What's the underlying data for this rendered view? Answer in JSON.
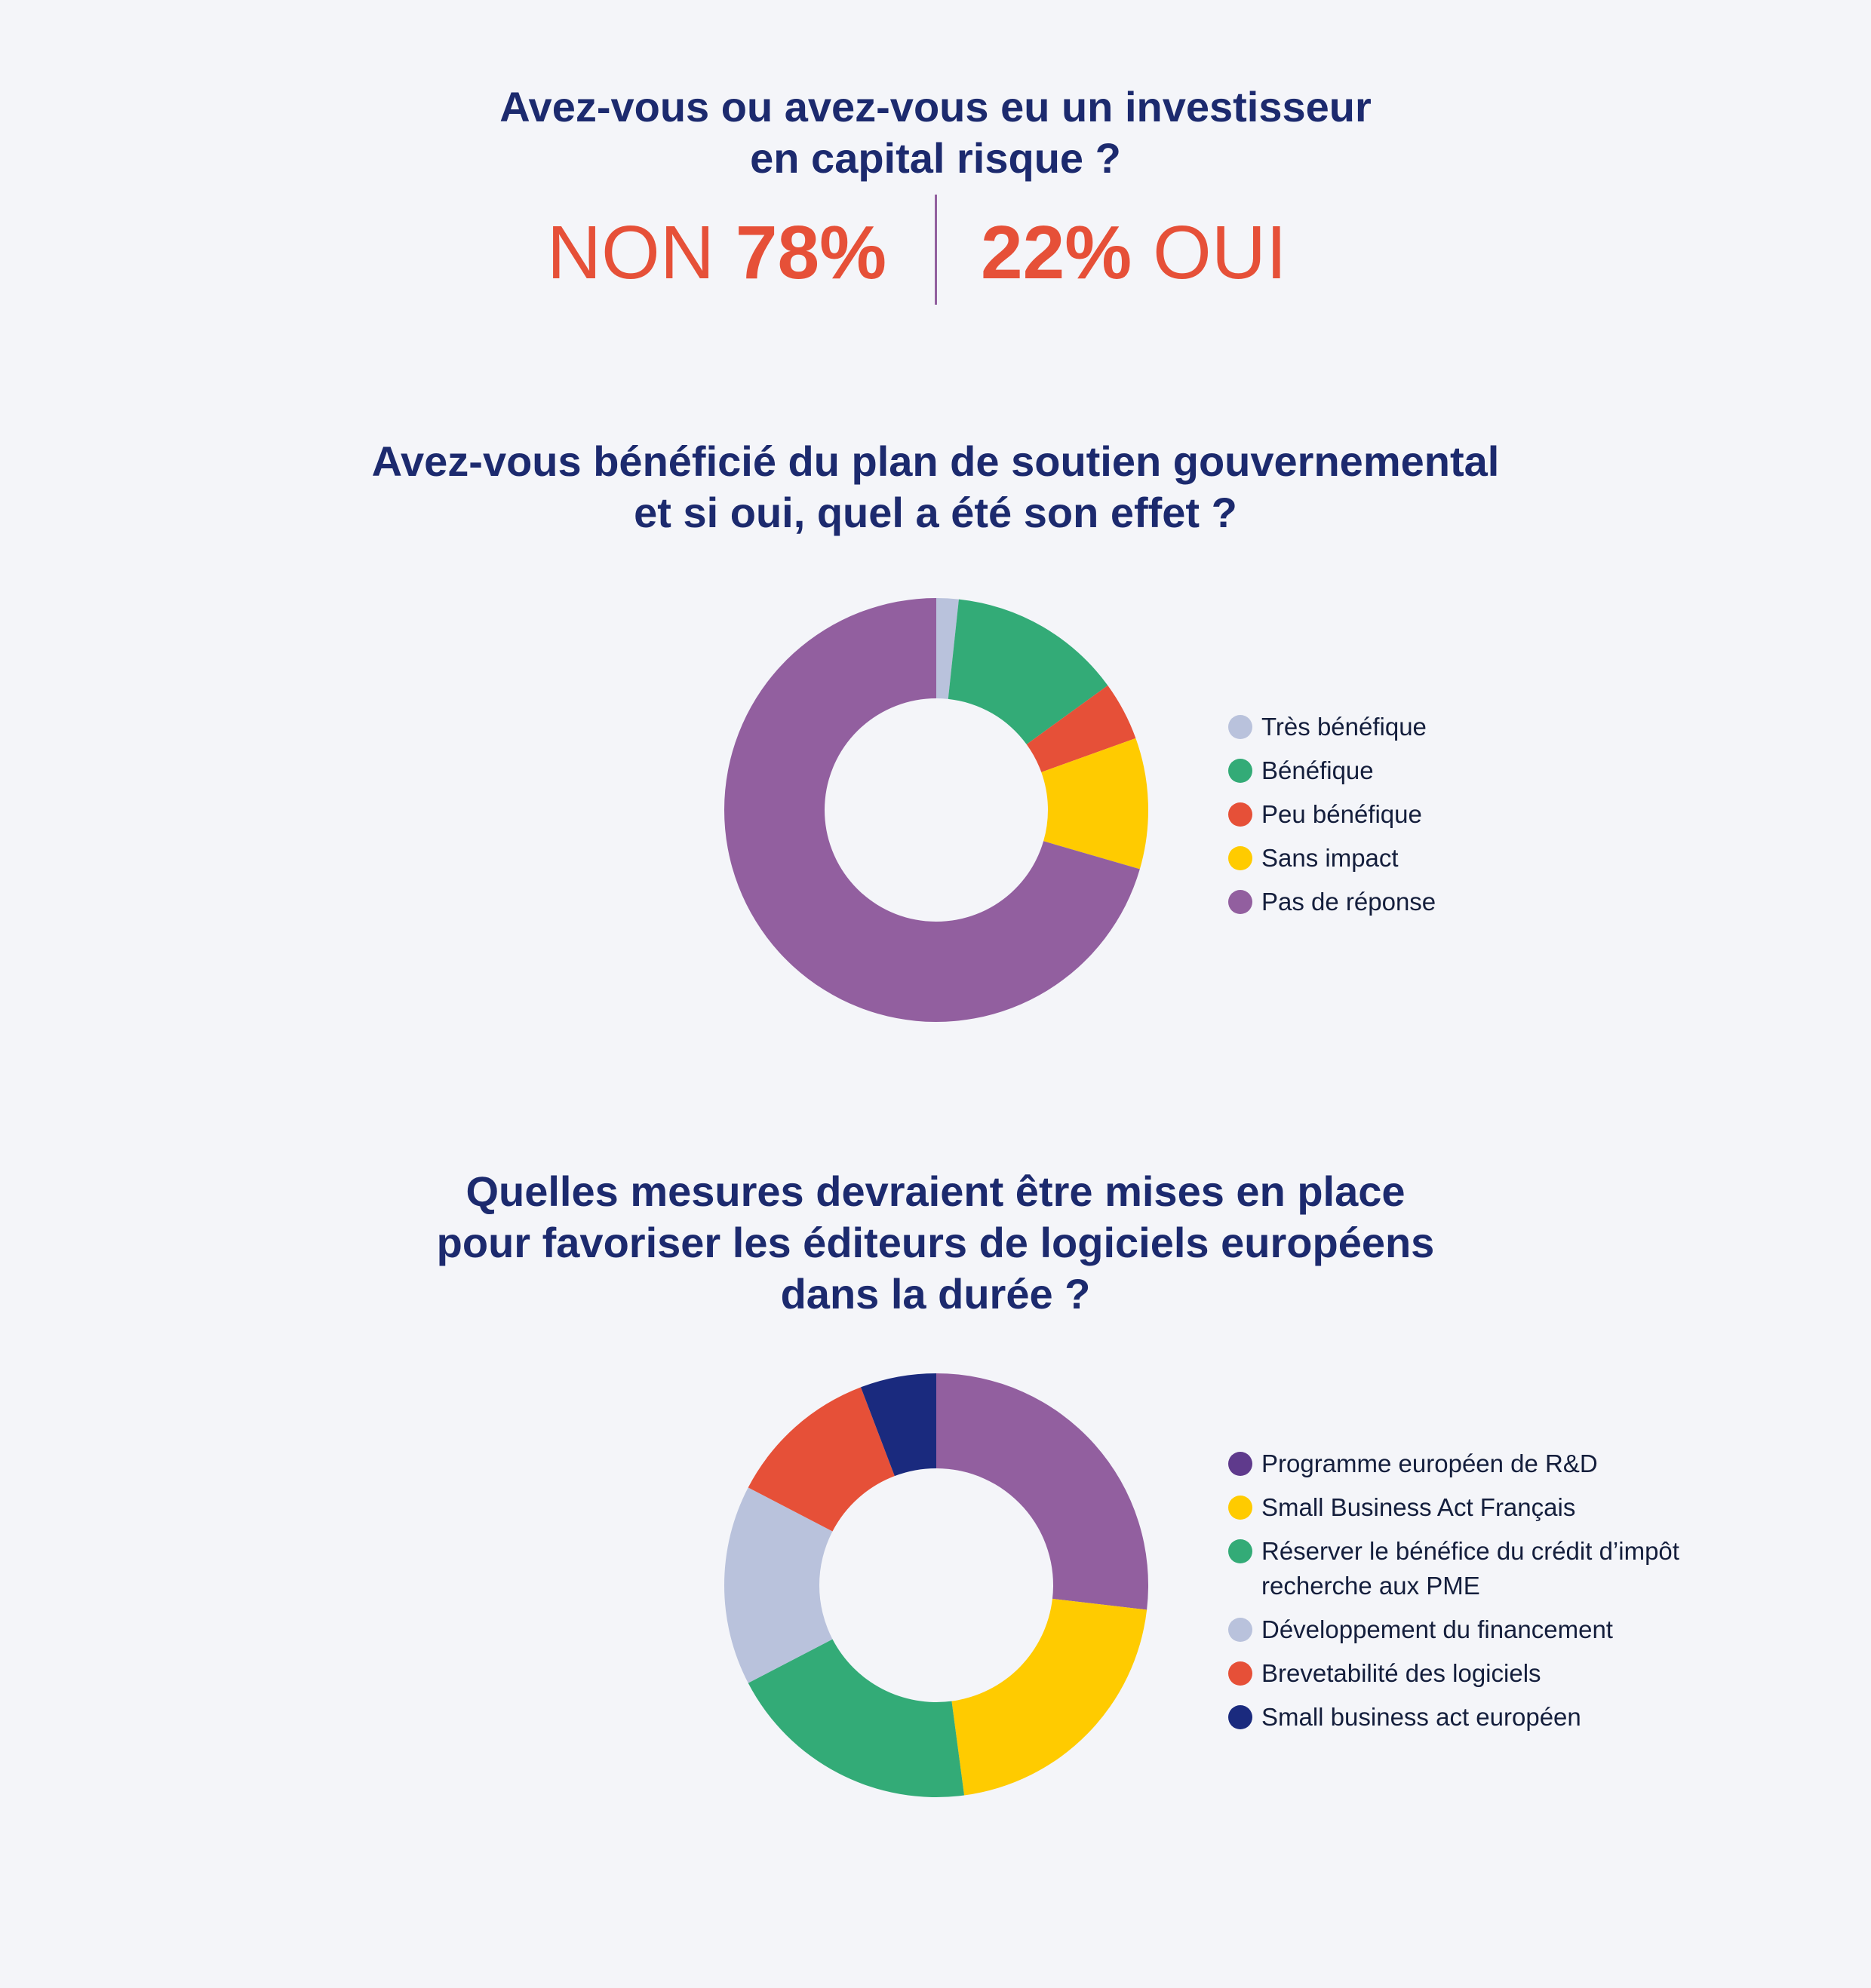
{
  "section1": {
    "title_lines": [
      "Avez-vous ou avez-vous eu un investisseur",
      "en capital risque ?"
    ],
    "non_label": "NON",
    "non_value": "78%",
    "oui_value": "22%",
    "oui_label": "OUI"
  },
  "chart_data": [
    {
      "type": "pie",
      "style": "donut",
      "title_lines": [
        "Avez-vous bénéficié du plan de soutien gouvernemental",
        "et si oui, quel a été son effet ?"
      ],
      "legend_position": "right",
      "series": [
        {
          "name": "Très bénéfique",
          "value": 1.7,
          "color": "#b9c2dc"
        },
        {
          "name": "Bénéfique",
          "value": 13.3,
          "color": "#33ab77"
        },
        {
          "name": "Peu bénéfique",
          "value": 4.5,
          "color": "#e65038"
        },
        {
          "name": "Sans impact",
          "value": 10.0,
          "color": "#ffcb00"
        },
        {
          "name": "Pas de réponse",
          "value": 70.5,
          "color": "#925f9f"
        }
      ]
    },
    {
      "type": "pie",
      "style": "donut",
      "title_lines": [
        "Quelles mesures devraient être mises en place",
        "pour favoriser les éditeurs de logiciels européens",
        "dans la durée ?"
      ],
      "legend_position": "right",
      "series": [
        {
          "name": "Programme européen de R&D",
          "value": 25.5,
          "color": "#925f9f",
          "legend_color": "#5f3a8c"
        },
        {
          "name": "Small Business Act Français",
          "value": 20.0,
          "color": "#ffcb00"
        },
        {
          "name": "Réserver le bénéfice du crédit d’impôt recherche aux PME",
          "legend_lines": [
            "Réserver le bénéfice du crédit d’impôt",
            "recherche aux PME"
          ],
          "value": 18.5,
          "color": "#33ab77"
        },
        {
          "name": "Développement du financement",
          "value": 14.5,
          "color": "#b9c2dc"
        },
        {
          "name": "Brevetabilité des logiciels",
          "value": 11.0,
          "color": "#e65038"
        },
        {
          "name": "Small business act européen",
          "value": 5.5,
          "color": "#1a2a7e"
        }
      ]
    }
  ]
}
